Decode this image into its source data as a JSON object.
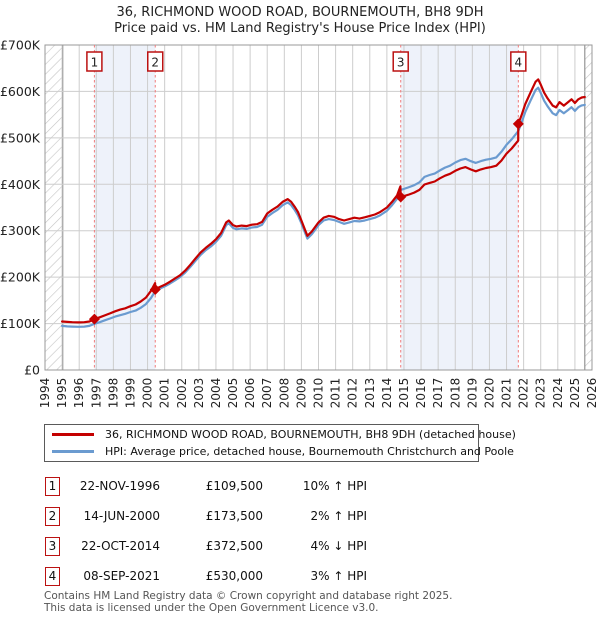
{
  "page": {
    "title_line1": "36, RICHMOND WOOD ROAD, BOURNEMOUTH, BH8 9DH",
    "title_line2": "Price paid vs. HM Land Registry's House Price Index (HPI)"
  },
  "chart_data": {
    "type": "line",
    "title": "36, RICHMOND WOOD ROAD, BOURNEMOUTH, BH8 9DH",
    "subtitle": "Price paid vs. HM Land Registry's House Price Index (HPI)",
    "xlim": [
      1994,
      2026
    ],
    "ylim": [
      0,
      700
    ],
    "x_ticks": [
      1994,
      1995,
      1996,
      1997,
      1998,
      1999,
      2000,
      2001,
      2002,
      2003,
      2004,
      2005,
      2006,
      2007,
      2008,
      2009,
      2010,
      2011,
      2012,
      2013,
      2014,
      2015,
      2016,
      2017,
      2018,
      2019,
      2020,
      2021,
      2022,
      2023,
      2024,
      2025,
      2026
    ],
    "y_ticks": [
      {
        "value": 700,
        "label": "£700K"
      },
      {
        "value": 600,
        "label": "£600K"
      },
      {
        "value": 500,
        "label": "£500K"
      },
      {
        "value": 400,
        "label": "£400K"
      },
      {
        "value": 300,
        "label": "£300K"
      },
      {
        "value": 200,
        "label": "£200K"
      },
      {
        "value": 100,
        "label": "£100K"
      },
      {
        "value": 0,
        "label": "£0"
      }
    ],
    "grid": true,
    "legend_position": "bottom",
    "shaded_spans": [
      [
        1996.89,
        2000.45
      ],
      [
        2014.81,
        2021.69
      ]
    ],
    "hatch_spans": [
      [
        1994,
        1995.04
      ],
      [
        2025.58,
        2026
      ]
    ],
    "sales": [
      {
        "label": "1",
        "x": 1996.89,
        "price_k": 109.5,
        "date": "22-NOV-1996"
      },
      {
        "label": "2",
        "x": 2000.45,
        "price_k": 173.5,
        "date": "14-JUN-2000"
      },
      {
        "label": "3",
        "x": 2014.81,
        "price_k": 372.5,
        "date": "22-OCT-2014"
      },
      {
        "label": "4",
        "x": 2021.69,
        "price_k": 530,
        "date": "08-SEP-2021"
      }
    ],
    "colors": {
      "price_line": "#c40000",
      "hpi_line": "#6b9bd0",
      "band": "#eef2fa",
      "dash": "#f07c7c",
      "badge_border": "#bb1111",
      "grid": "#cdcdcd",
      "plot_border": "#999999",
      "hatch": "#c4c4c4",
      "marker": "#c40000"
    },
    "series": [
      {
        "name": "36, RICHMOND WOOD ROAD, BOURNEMOUTH, BH8 9DH (detached house)",
        "unit": "£K",
        "points": [
          [
            1995,
            104.5
          ],
          [
            1995.3,
            103.5
          ],
          [
            1995.6,
            103
          ],
          [
            1996,
            102.5
          ],
          [
            1996.3,
            103
          ],
          [
            1996.6,
            104.5
          ],
          [
            1996.89,
            109.5
          ],
          [
            1997.2,
            113.5
          ],
          [
            1997.5,
            117.5
          ],
          [
            1997.8,
            122
          ],
          [
            1998.1,
            126.5
          ],
          [
            1998.4,
            130
          ],
          [
            1998.7,
            133
          ],
          [
            1999,
            137.5
          ],
          [
            1999.3,
            141
          ],
          [
            1999.6,
            147.5
          ],
          [
            1999.9,
            156
          ],
          [
            2000.2,
            170.5
          ],
          [
            2000.44,
            187
          ],
          [
            2000.45,
            173.5
          ],
          [
            2000.7,
            178.5
          ],
          [
            2001,
            183.5
          ],
          [
            2001.3,
            190
          ],
          [
            2001.6,
            197
          ],
          [
            2001.9,
            204
          ],
          [
            2002.2,
            214
          ],
          [
            2002.5,
            226.5
          ],
          [
            2002.8,
            240
          ],
          [
            2003.1,
            253
          ],
          [
            2003.4,
            263
          ],
          [
            2003.7,
            271.5
          ],
          [
            2004,
            281.5
          ],
          [
            2004.3,
            295
          ],
          [
            2004.6,
            318
          ],
          [
            2004.75,
            322
          ],
          [
            2005,
            312
          ],
          [
            2005.2,
            309
          ],
          [
            2005.5,
            311
          ],
          [
            2005.8,
            310
          ],
          [
            2006.1,
            313
          ],
          [
            2006.4,
            314
          ],
          [
            2006.7,
            319
          ],
          [
            2007,
            337
          ],
          [
            2007.3,
            345
          ],
          [
            2007.6,
            352
          ],
          [
            2007.9,
            362
          ],
          [
            2008.2,
            368
          ],
          [
            2008.4,
            362
          ],
          [
            2008.6,
            352
          ],
          [
            2008.8,
            340
          ],
          [
            2009,
            322
          ],
          [
            2009.2,
            303
          ],
          [
            2009.35,
            289
          ],
          [
            2009.6,
            298
          ],
          [
            2009.8,
            308
          ],
          [
            2010,
            318
          ],
          [
            2010.3,
            328
          ],
          [
            2010.6,
            332
          ],
          [
            2010.9,
            330
          ],
          [
            2011.2,
            325
          ],
          [
            2011.5,
            322
          ],
          [
            2011.8,
            325
          ],
          [
            2012.1,
            328
          ],
          [
            2012.4,
            326
          ],
          [
            2012.7,
            329
          ],
          [
            2013,
            332
          ],
          [
            2013.3,
            335
          ],
          [
            2013.6,
            340
          ],
          [
            2014,
            350
          ],
          [
            2014.3,
            362
          ],
          [
            2014.6,
            376
          ],
          [
            2014.79,
            395.5
          ],
          [
            2014.81,
            372.5
          ],
          [
            2015,
            374.5
          ],
          [
            2015.3,
            378
          ],
          [
            2015.6,
            382
          ],
          [
            2015.9,
            388
          ],
          [
            2016.2,
            399.5
          ],
          [
            2016.5,
            403
          ],
          [
            2016.8,
            406
          ],
          [
            2017.1,
            413
          ],
          [
            2017.4,
            418.5
          ],
          [
            2017.7,
            422.5
          ],
          [
            2018,
            429
          ],
          [
            2018.3,
            434
          ],
          [
            2018.6,
            437
          ],
          [
            2018.9,
            432
          ],
          [
            2019.2,
            428
          ],
          [
            2019.5,
            432
          ],
          [
            2019.8,
            435
          ],
          [
            2020.1,
            437
          ],
          [
            2020.4,
            440
          ],
          [
            2020.7,
            451
          ],
          [
            2021,
            466
          ],
          [
            2021.3,
            477
          ],
          [
            2021.68,
            494
          ],
          [
            2021.69,
            530
          ],
          [
            2021.9,
            551
          ],
          [
            2022.1,
            573
          ],
          [
            2022.4,
            597.5
          ],
          [
            2022.7,
            621
          ],
          [
            2022.85,
            626
          ],
          [
            2023,
            615
          ],
          [
            2023.2,
            597.5
          ],
          [
            2023.4,
            585
          ],
          [
            2023.7,
            569.5
          ],
          [
            2023.9,
            565.5
          ],
          [
            2024.1,
            577
          ],
          [
            2024.35,
            569.5
          ],
          [
            2024.6,
            577
          ],
          [
            2024.8,
            583
          ],
          [
            2025,
            575
          ],
          [
            2025.2,
            583
          ],
          [
            2025.4,
            587
          ],
          [
            2025.58,
            588
          ]
        ]
      },
      {
        "name": "HPI: Average price, detached house, Bournemouth Christchurch and Poole",
        "unit": "£K",
        "points": [
          [
            1995,
            95
          ],
          [
            1995.3,
            94
          ],
          [
            1995.6,
            93.5
          ],
          [
            1996,
            93
          ],
          [
            1996.3,
            93.5
          ],
          [
            1996.6,
            95
          ],
          [
            1996.89,
            99.5
          ],
          [
            1997.2,
            103
          ],
          [
            1997.5,
            107
          ],
          [
            1997.8,
            111
          ],
          [
            1998.1,
            115
          ],
          [
            1998.4,
            118
          ],
          [
            1998.7,
            121
          ],
          [
            1999,
            125
          ],
          [
            1999.3,
            128
          ],
          [
            1999.6,
            134
          ],
          [
            1999.9,
            142
          ],
          [
            2000.2,
            155
          ],
          [
            2000.45,
            170
          ],
          [
            2000.7,
            175
          ],
          [
            2001,
            180
          ],
          [
            2001.3,
            186
          ],
          [
            2001.6,
            193
          ],
          [
            2001.9,
            200
          ],
          [
            2002.2,
            210
          ],
          [
            2002.5,
            222
          ],
          [
            2002.8,
            235
          ],
          [
            2003.1,
            248
          ],
          [
            2003.4,
            258
          ],
          [
            2003.7,
            266
          ],
          [
            2004,
            276
          ],
          [
            2004.3,
            289
          ],
          [
            2004.6,
            312
          ],
          [
            2004.75,
            316
          ],
          [
            2005,
            306
          ],
          [
            2005.2,
            303
          ],
          [
            2005.5,
            305
          ],
          [
            2005.8,
            304
          ],
          [
            2006.1,
            307
          ],
          [
            2006.4,
            308
          ],
          [
            2006.7,
            313
          ],
          [
            2007,
            330
          ],
          [
            2007.3,
            338
          ],
          [
            2007.6,
            345
          ],
          [
            2007.9,
            355
          ],
          [
            2008.2,
            361
          ],
          [
            2008.4,
            355
          ],
          [
            2008.6,
            345
          ],
          [
            2008.8,
            333
          ],
          [
            2009,
            316
          ],
          [
            2009.2,
            297
          ],
          [
            2009.35,
            283
          ],
          [
            2009.6,
            292
          ],
          [
            2009.8,
            302
          ],
          [
            2010,
            312
          ],
          [
            2010.3,
            322
          ],
          [
            2010.6,
            325
          ],
          [
            2010.9,
            323
          ],
          [
            2011.2,
            319
          ],
          [
            2011.5,
            315
          ],
          [
            2011.8,
            318
          ],
          [
            2012.1,
            321
          ],
          [
            2012.4,
            320
          ],
          [
            2012.7,
            322
          ],
          [
            2013,
            325
          ],
          [
            2013.3,
            328
          ],
          [
            2013.6,
            333
          ],
          [
            2014,
            343
          ],
          [
            2014.3,
            355
          ],
          [
            2014.6,
            369
          ],
          [
            2014.8,
            388
          ],
          [
            2015,
            390
          ],
          [
            2015.3,
            394
          ],
          [
            2015.6,
            398
          ],
          [
            2015.9,
            404
          ],
          [
            2016.2,
            416
          ],
          [
            2016.5,
            420
          ],
          [
            2016.8,
            423
          ],
          [
            2017.1,
            430
          ],
          [
            2017.4,
            436
          ],
          [
            2017.7,
            440
          ],
          [
            2018,
            447
          ],
          [
            2018.3,
            452
          ],
          [
            2018.6,
            455
          ],
          [
            2018.9,
            450
          ],
          [
            2019.2,
            446
          ],
          [
            2019.5,
            450
          ],
          [
            2019.8,
            453
          ],
          [
            2020.1,
            455
          ],
          [
            2020.4,
            458
          ],
          [
            2020.7,
            470
          ],
          [
            2021,
            485
          ],
          [
            2021.3,
            497
          ],
          [
            2021.69,
            514.5
          ],
          [
            2021.9,
            535
          ],
          [
            2022.1,
            556
          ],
          [
            2022.4,
            580
          ],
          [
            2022.7,
            603
          ],
          [
            2022.85,
            608
          ],
          [
            2023,
            597
          ],
          [
            2023.2,
            580
          ],
          [
            2023.4,
            568
          ],
          [
            2023.7,
            553
          ],
          [
            2023.9,
            549
          ],
          [
            2024.1,
            560
          ],
          [
            2024.35,
            553
          ],
          [
            2024.6,
            560
          ],
          [
            2024.8,
            566
          ],
          [
            2025,
            558
          ],
          [
            2025.2,
            566
          ],
          [
            2025.4,
            570
          ],
          [
            2025.58,
            571
          ]
        ]
      }
    ]
  },
  "legend": {
    "items": [
      {
        "label": "36, RICHMOND WOOD ROAD, BOURNEMOUTH, BH8 9DH (detached house)",
        "color": "#c40000"
      },
      {
        "label": "HPI: Average price, detached house, Bournemouth Christchurch and Poole",
        "color": "#6b9bd0"
      }
    ]
  },
  "table": {
    "rows": [
      {
        "num": "1",
        "date": "22-NOV-1996",
        "price": "£109,500",
        "hpi": "10% ↑ HPI"
      },
      {
        "num": "2",
        "date": "14-JUN-2000",
        "price": "£173,500",
        "hpi": "2% ↑ HPI"
      },
      {
        "num": "3",
        "date": "22-OCT-2014",
        "price": "£372,500",
        "hpi": "4% ↓ HPI"
      },
      {
        "num": "4",
        "date": "08-SEP-2021",
        "price": "£530,000",
        "hpi": "3% ↑ HPI"
      }
    ]
  },
  "footer": {
    "line1": "Contains HM Land Registry data © Crown copyright and database right 2025.",
    "line2": "This data is licensed under the Open Government Licence v3.0."
  }
}
